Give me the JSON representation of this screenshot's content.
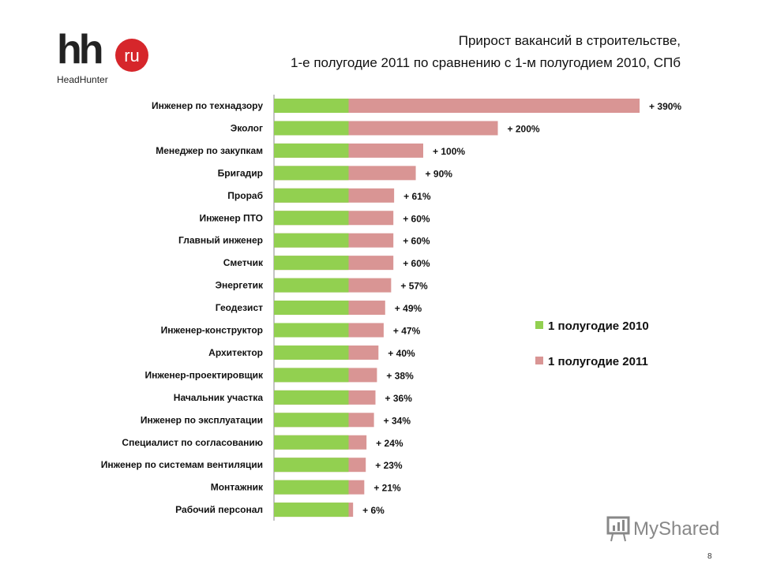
{
  "logo": {
    "text": "hh",
    "badge": "ru",
    "caption": "HeadHunter"
  },
  "chart_data": {
    "type": "bar",
    "orientation": "horizontal",
    "title": "Прирост вакансий в строительстве,",
    "subtitle": "1-е полугодие 2011 по сравнению с 1-м полугодием 2010, СПб",
    "categories": [
      "Инженер по технадзору",
      "Эколог",
      "Менеджер по закупкам",
      "Бригадир",
      "Прораб",
      "Инженер ПТО",
      "Главный инженер",
      "Сметчик",
      "Энергетик",
      "Геодезист",
      "Инженер-конструктор",
      "Архитектор",
      "Инженер-проектировщик",
      "Начальник участка",
      "Инженер по эксплуатации",
      "Специалист по согласованию",
      "Инженер по системам вентиляции",
      "Монтажник",
      "Рабочий персонал"
    ],
    "series": [
      {
        "name": "1 полугодие 2010",
        "color": "#92d050",
        "values": [
          100,
          100,
          100,
          100,
          100,
          100,
          100,
          100,
          100,
          100,
          100,
          100,
          100,
          100,
          100,
          100,
          100,
          100,
          100
        ]
      },
      {
        "name": "1 полугодие 2011",
        "color": "#d99594",
        "values": [
          490,
          300,
          200,
          190,
          161,
          160,
          160,
          160,
          157,
          149,
          147,
          140,
          138,
          136,
          134,
          124,
          123,
          121,
          106
        ]
      }
    ],
    "data_labels": [
      "+ 390%",
      "+ 200%",
      "+ 100%",
      "+ 90%",
      "+ 61%",
      "+ 60%",
      "+ 60%",
      "+ 60%",
      "+ 57%",
      "+ 49%",
      "+ 47%",
      "+ 40%",
      "+ 38%",
      "+ 36%",
      "+ 34%",
      "+ 24%",
      "+ 23%",
      "+ 21%",
      "+ 6%"
    ],
    "legend_position": "right",
    "grid": false
  },
  "watermark": "MyShared",
  "page_number": "8"
}
